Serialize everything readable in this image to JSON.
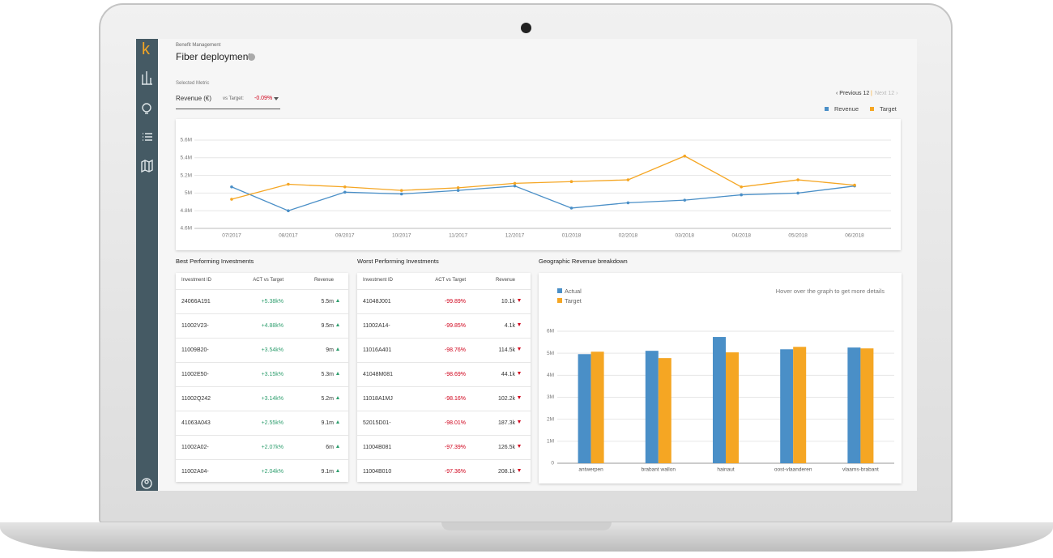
{
  "logo": "k",
  "header": {
    "breadcrumb": "Benefit Management",
    "title": "Fiber deployment"
  },
  "metric": {
    "label": "Selected Metric",
    "value": "Revenue (€)",
    "vs_target_label": "vs Target:",
    "vs_target_value": "-0.09%"
  },
  "pagination": {
    "previous": "Previous 12",
    "next": "Next 12"
  },
  "chart_data": [
    {
      "type": "line",
      "categories": [
        "07/2017",
        "08/2017",
        "09/2017",
        "10/2017",
        "11/2017",
        "12/2017",
        "01/2018",
        "02/2018",
        "03/2018",
        "04/2018",
        "05/2018",
        "06/2018"
      ],
      "series": [
        {
          "name": "Revenue",
          "color": "#4a8fc7",
          "values": [
            5.07,
            4.8,
            5.01,
            4.99,
            5.03,
            5.08,
            4.83,
            4.89,
            4.92,
            4.98,
            5.0,
            5.08
          ]
        },
        {
          "name": "Target",
          "color": "#f5a623",
          "values": [
            4.93,
            5.1,
            5.07,
            5.03,
            5.06,
            5.11,
            5.13,
            5.15,
            5.42,
            5.07,
            5.15,
            5.09
          ]
        }
      ],
      "ylim": [
        4.6,
        5.6
      ],
      "yticks": [
        {
          "value": 4.6,
          "label": "4.6M"
        },
        {
          "value": 4.8,
          "label": "4.8M"
        },
        {
          "value": 5,
          "label": "5M"
        },
        {
          "value": 5.2,
          "label": "5.2M"
        },
        {
          "value": 5.4,
          "label": "5.4M"
        },
        {
          "value": 5.6,
          "label": "5.6M"
        }
      ],
      "grid": true,
      "legend": "top-right"
    },
    {
      "type": "bar",
      "title": "Geographic Revenue breakdown",
      "annotation": "Hover over the graph to get more details",
      "categories": [
        "antwerpen",
        "brabant wallon",
        "hainaut",
        "oost-vlaanderen",
        "vlaams-brabant"
      ],
      "series": [
        {
          "name": "Actual",
          "color": "#4a8fc7",
          "values": [
            4.96,
            5.11,
            5.74,
            5.18,
            5.26
          ]
        },
        {
          "name": "Target",
          "color": "#f5a623",
          "values": [
            5.07,
            4.78,
            5.04,
            5.29,
            5.22
          ]
        }
      ],
      "ylim": [
        0,
        6
      ],
      "yticks": [
        0,
        {
          "value": 1,
          "label": "1M"
        },
        {
          "value": 2,
          "label": "2M"
        },
        {
          "value": 3,
          "label": "3M"
        },
        {
          "value": 4,
          "label": "4M"
        },
        {
          "value": 5,
          "label": "5M"
        },
        {
          "value": 6,
          "label": "6M"
        }
      ],
      "grid": true,
      "legend": "top-left"
    }
  ],
  "best_table": {
    "title": "Best Performing Investments",
    "columns": [
      "Investment ID",
      "ACT vs Target",
      "Revenue"
    ],
    "rows": [
      [
        "24066A191",
        "+5.38k%",
        "5.5m"
      ],
      [
        "11002V23-",
        "+4.88k%",
        "9.5m"
      ],
      [
        "11009B20-",
        "+3.54k%",
        "9m"
      ],
      [
        "11002E50-",
        "+3.15k%",
        "5.3m"
      ],
      [
        "11002Q242",
        "+3.14k%",
        "5.2m"
      ],
      [
        "41063A043",
        "+2.55k%",
        "9.1m"
      ],
      [
        "11002A02-",
        "+2.07k%",
        "6m"
      ],
      [
        "11002A04-",
        "+2.04k%",
        "9.1m"
      ]
    ]
  },
  "worst_table": {
    "title": "Worst Performing Investments",
    "columns": [
      "Investment ID",
      "ACT vs Target",
      "Revenue"
    ],
    "rows": [
      [
        "41048J001",
        "-99.89%",
        "10.1k"
      ],
      [
        "11002A14-",
        "-99.85%",
        "4.1k"
      ],
      [
        "11016A401",
        "-98.76%",
        "114.5k"
      ],
      [
        "41048M081",
        "-98.69%",
        "44.1k"
      ],
      [
        "11018A1MJ",
        "-98.16%",
        "102.2k"
      ],
      [
        "52015D01-",
        "-98.01%",
        "187.3k"
      ],
      [
        "11004B081",
        "-97.39%",
        "126.5k"
      ],
      [
        "11004B010",
        "-97.36%",
        "208.1k"
      ]
    ]
  }
}
